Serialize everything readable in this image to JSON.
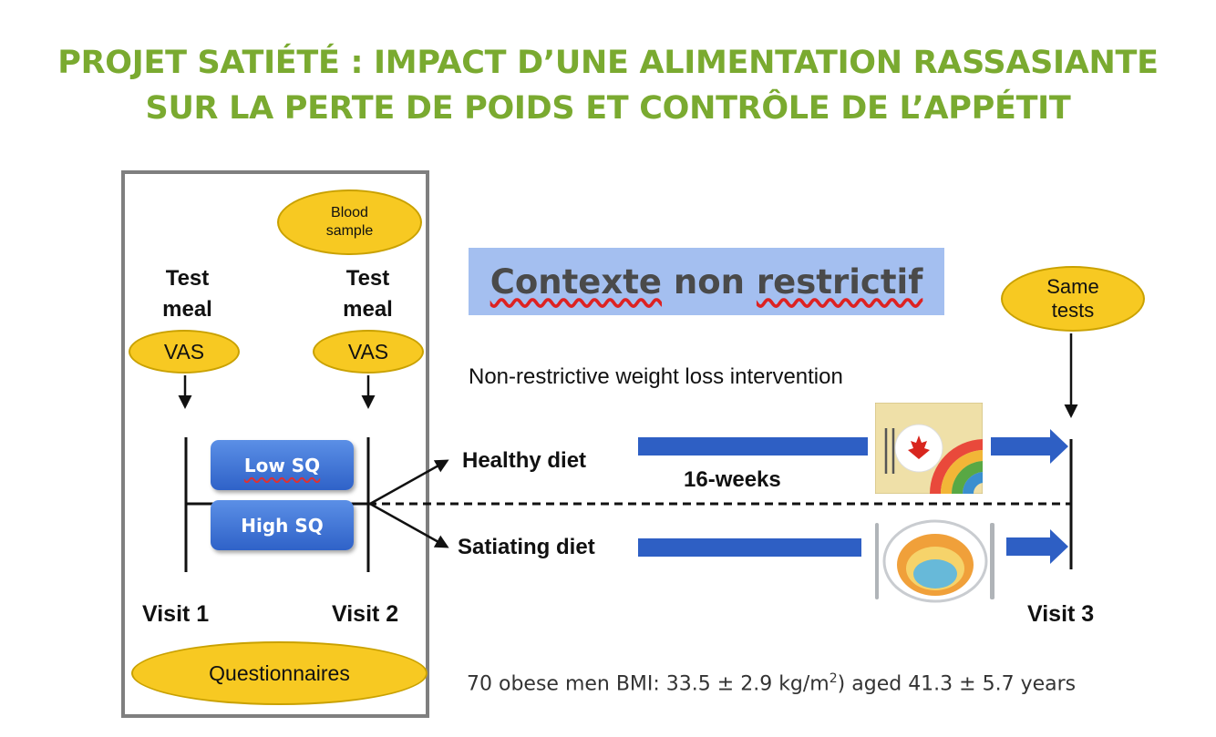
{
  "title": {
    "line1": "PROJET SATIÉTÉ : IMPACT D’UNE ALIMENTATION RASSASIANTE",
    "line2": "SUR LA PERTE DE POIDS ET CONTRÔLE DE L’APPÉTIT"
  },
  "blood_sample": {
    "line1": "Blood",
    "line2": "sample"
  },
  "visit1_block": {
    "line1": "Test",
    "line2": "meal",
    "badge": "VAS",
    "label": "Visit 1"
  },
  "visit2_block": {
    "line1": "Test",
    "line2": "meal",
    "badge": "VAS",
    "label": "Visit 2"
  },
  "low_sq": "Low SQ",
  "high_sq": "High SQ",
  "questionnaires": "Questionnaires",
  "context_banner": {
    "word1": "Contexte",
    "word2": "non",
    "word3": "restrictif"
  },
  "same_tests": {
    "line1": "Same",
    "line2": "tests"
  },
  "intervention_label": "Non-restrictive weight loss intervention",
  "healthy_diet": "Healthy diet",
  "satiating_diet": "Satiating diet",
  "duration": "16-weeks",
  "visit3_label": "Visit 3",
  "footnote": {
    "before": "70 obese men BMI: 33.5 ± 2.9 kg/m",
    "sup": "2",
    "after": ") aged 41.3 ± 5.7 years"
  },
  "colors": {
    "title": "#7aaa30",
    "badge": "#f7c922",
    "sq_box": "#3a6fd6",
    "bar": "#2e5fc4",
    "banner": "#a4bff0"
  },
  "icons": [
    "canada-food-guide-plate-image",
    "satiating-diet-plate-image"
  ]
}
